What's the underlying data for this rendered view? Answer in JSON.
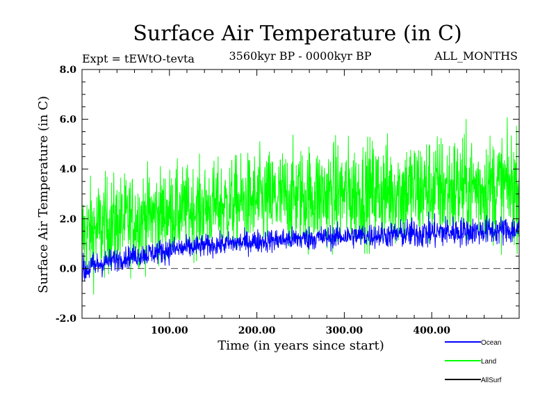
{
  "chart_data": {
    "type": "line",
    "title": "Surface Air Temperature (in C)",
    "subtitle_left": "Expt = tEWtO-tevta",
    "subtitle_center": "3560kyr BP - 0000kyr BP",
    "subtitle_right": "ALL_MONTHS",
    "xlabel": "Time (in years since start)",
    "ylabel": "Surface Air Temperature (in C)",
    "xlim": [
      0,
      500
    ],
    "ylim": [
      -2.0,
      8.0
    ],
    "x_ticks": [
      100,
      200,
      300,
      400
    ],
    "x_tick_labels": [
      "100.00",
      "200.00",
      "300.00",
      "400.00"
    ],
    "y_ticks": [
      -2,
      0,
      2,
      4,
      6,
      8
    ],
    "y_tick_labels": [
      "-2.0",
      "0.0",
      "2.0",
      "4.0",
      "6.0",
      "8.0"
    ],
    "reference_line": {
      "y": 0.0,
      "style": "dashed"
    },
    "series": [
      {
        "name": "Land",
        "color": "#00ff00",
        "x": [
          0,
          25,
          50,
          75,
          100,
          150,
          200,
          250,
          300,
          350,
          400,
          450,
          500
        ],
        "mean": [
          1.3,
          1.7,
          1.9,
          2.1,
          2.25,
          2.5,
          2.7,
          2.9,
          3.0,
          3.1,
          3.2,
          3.25,
          3.3
        ],
        "upper": [
          3.7,
          4.0,
          4.2,
          4.3,
          4.4,
          4.7,
          5.2,
          5.5,
          5.7,
          5.8,
          6.0,
          6.0,
          6.1
        ],
        "lower": [
          -1.3,
          -0.8,
          -0.5,
          -0.3,
          0.0,
          0.3,
          0.4,
          0.5,
          0.6,
          0.6,
          0.6,
          0.5,
          0.6
        ]
      },
      {
        "name": "Ocean",
        "color": "#0000ff",
        "x": [
          0,
          25,
          50,
          75,
          100,
          150,
          200,
          250,
          300,
          350,
          400,
          450,
          500
        ],
        "mean": [
          -0.1,
          0.25,
          0.45,
          0.6,
          0.75,
          0.95,
          1.1,
          1.2,
          1.3,
          1.35,
          1.45,
          1.5,
          1.55
        ],
        "upper": [
          0.6,
          0.9,
          1.0,
          1.1,
          1.3,
          1.5,
          1.7,
          1.8,
          1.9,
          2.0,
          2.3,
          2.2,
          2.2
        ],
        "lower": [
          -0.9,
          -0.4,
          -0.1,
          0.0,
          0.1,
          0.4,
          0.5,
          0.6,
          0.7,
          0.7,
          0.8,
          0.8,
          0.8
        ]
      },
      {
        "name": "AllSurf",
        "color": "#000000",
        "x": [],
        "mean": []
      }
    ],
    "legend": {
      "placement": "bottom-right",
      "entries": [
        "Ocean",
        "Land",
        "AllSurf"
      ]
    }
  }
}
